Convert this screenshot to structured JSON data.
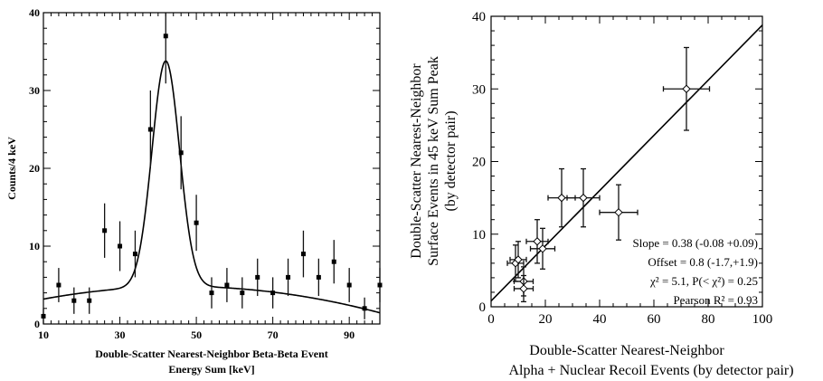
{
  "chart_data": [
    {
      "type": "scatter",
      "xlabel": [
        "Double-Scatter Nearest-Neighbor Beta-Beta Event",
        "Energy Sum [keV]"
      ],
      "ylabel": "Counts/4 keV",
      "xlim": [
        10,
        98
      ],
      "ylim": [
        0,
        40
      ],
      "xticks": [
        10,
        30,
        50,
        70,
        90
      ],
      "yticks": [
        0,
        10,
        20,
        30,
        40
      ],
      "x": [
        10,
        14,
        18,
        22,
        26,
        30,
        34,
        38,
        42,
        46,
        50,
        54,
        58,
        62,
        66,
        70,
        74,
        78,
        82,
        86,
        90,
        94,
        98
      ],
      "y": [
        1,
        5,
        3,
        3,
        12,
        10,
        9,
        25,
        37,
        22,
        13,
        4,
        5,
        4,
        6,
        4,
        6,
        9,
        6,
        8,
        5,
        2,
        5
      ],
      "yerr": [
        1,
        2.2,
        1.7,
        1.7,
        3.5,
        3.2,
        3,
        5,
        6.1,
        4.7,
        3.6,
        2,
        2.2,
        2,
        2.4,
        2,
        2.4,
        3,
        2.4,
        2.8,
        2.2,
        1.4,
        2.2
      ],
      "fit_curve": {
        "description_only_for_script": false,
        "background": {
          "a": 3.2,
          "b": 0.09,
          "c": -0.00125
        },
        "peak": {
          "amplitude": 29,
          "center": 42,
          "sigma": 3.6
        }
      }
    },
    {
      "type": "scatter",
      "xlabel": [
        "Double-Scatter Nearest-Neighbor",
        "Alpha + Nuclear Recoil Events (by detector pair)"
      ],
      "ylabel": [
        "Double-Scatter Nearest-Neighbor",
        "Surface Events in 45 keV Sum Peak",
        "(by detector pair)"
      ],
      "xlim": [
        0,
        100
      ],
      "ylim": [
        0,
        40
      ],
      "xticks": [
        0,
        20,
        40,
        60,
        80,
        100
      ],
      "yticks": [
        0,
        10,
        20,
        30,
        40
      ],
      "x": [
        9,
        10,
        12,
        12,
        17,
        19,
        26,
        34,
        47,
        72
      ],
      "y": [
        6,
        6.5,
        3.5,
        2.5,
        9,
        8,
        15,
        15,
        13,
        30
      ],
      "xerr": [
        3,
        3,
        3.5,
        3.5,
        4,
        4.5,
        5,
        6,
        7,
        8.5
      ],
      "yerr": [
        2.5,
        2.5,
        2,
        1.8,
        3,
        2.8,
        4,
        4,
        3.8,
        5.7
      ],
      "fit_line": {
        "slope": 0.38,
        "offset": 0.8
      },
      "annotations": [
        "Slope = 0.38 (-0.08 +0.09)",
        "Offset = 0.8 (-1.7,+1.9)",
        "χ² = 5.1, P(< χ²) = 0.25",
        "Pearson R² = 0.93"
      ]
    }
  ]
}
